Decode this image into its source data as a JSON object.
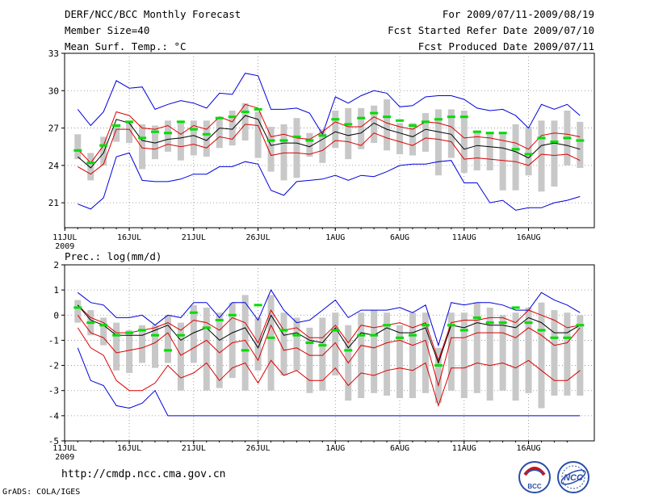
{
  "header": {
    "title": "DERF/NCC/BCC Monthly Forecast",
    "member_size": "Member Size=40",
    "variable": "Mean Surf. Temp.: °C",
    "period": "For 2009/07/11-2009/08/19",
    "fcst_started": "Fcst Started Refer Date 2009/07/10",
    "fcst_produced": "Fcst Produced Date 2009/07/11"
  },
  "footer": {
    "url": "http://cmdp.ncc.cma.gov.cn",
    "credit": "GrADS: COLA/IGES",
    "logo_left_text": "BCC",
    "logo_right_text": "NCC"
  },
  "colors": {
    "envelope": "#0000dd",
    "percentile": "#dd0000",
    "mean": "#000000",
    "box": "#c8c8c8",
    "observed": "#00dd00",
    "grid": "#888888"
  },
  "chart_data": [
    {
      "type": "line",
      "title": "Mean Surf. Temp.: °C",
      "ylim": [
        19,
        33
      ],
      "yticks": [
        21,
        24,
        27,
        30,
        33
      ],
      "x_start": "2009-07-11",
      "days": 40,
      "xtick_labels": [
        "11JUL",
        "16JUL",
        "21JUL",
        "26JUL",
        "1AUG",
        "6AUG",
        "11AUG",
        "16AUG"
      ],
      "xtick_days": [
        0,
        5,
        10,
        15,
        21,
        26,
        31,
        36
      ],
      "year_label": "2009",
      "series": [
        {
          "name": "max",
          "values": [
            28.5,
            27.2,
            28.3,
            30.8,
            30.2,
            30.3,
            28.5,
            28.9,
            29.2,
            29.0,
            28.6,
            29.8,
            29.7,
            31.4,
            31.2,
            28.5,
            28.5,
            28.6,
            28.2,
            26.5,
            29.5,
            29.0,
            29.6,
            30.0,
            29.8,
            28.7,
            28.8,
            29.5,
            29.6,
            29.6,
            29.3,
            28.6,
            28.4,
            28.5,
            28.0,
            27.0,
            28.9,
            28.5,
            28.9,
            28.0
          ]
        },
        {
          "name": "p90",
          "values": [
            25.3,
            24.2,
            25.6,
            28.3,
            28.0,
            27.0,
            26.9,
            27.2,
            26.5,
            27.2,
            26.9,
            27.9,
            27.5,
            28.9,
            28.6,
            26.3,
            26.5,
            26.2,
            26.1,
            26.7,
            27.5,
            27.1,
            27.1,
            27.9,
            27.4,
            27.1,
            26.9,
            27.5,
            27.4,
            27.1,
            26.2,
            26.3,
            26.2,
            26.0,
            25.8,
            25.3,
            26.4,
            26.6,
            26.5,
            26.3
          ]
        },
        {
          "name": "mean",
          "values": [
            24.7,
            23.8,
            25.0,
            27.7,
            27.4,
            26.0,
            25.8,
            26.1,
            26.2,
            26.4,
            26.0,
            27.0,
            26.9,
            28.0,
            27.7,
            25.6,
            25.8,
            25.8,
            25.5,
            26.1,
            26.7,
            26.4,
            26.6,
            27.4,
            26.9,
            26.6,
            26.3,
            26.9,
            26.7,
            26.5,
            25.3,
            25.6,
            25.5,
            25.4,
            25.1,
            24.6,
            25.6,
            25.8,
            25.6,
            25.3
          ]
        },
        {
          "name": "p10",
          "values": [
            23.9,
            23.3,
            24.1,
            26.9,
            26.9,
            25.4,
            25.3,
            25.7,
            25.5,
            25.7,
            25.4,
            26.3,
            26.1,
            27.3,
            27.2,
            24.8,
            25.0,
            25.0,
            24.9,
            25.2,
            26.0,
            25.9,
            25.6,
            26.6,
            26.2,
            25.9,
            25.6,
            26.2,
            26.1,
            25.9,
            24.5,
            24.6,
            24.5,
            24.4,
            24.3,
            24.0,
            24.9,
            24.8,
            24.9,
            24.4
          ]
        },
        {
          "name": "min",
          "values": [
            20.9,
            20.5,
            21.4,
            24.7,
            25.0,
            22.8,
            22.7,
            22.7,
            22.9,
            23.3,
            23.3,
            23.9,
            23.9,
            24.3,
            24.1,
            22.0,
            21.6,
            22.7,
            22.8,
            22.9,
            23.2,
            22.8,
            23.2,
            23.1,
            23.5,
            24.0,
            24.1,
            24.1,
            24.3,
            24.4,
            22.6,
            22.6,
            21.0,
            21.2,
            20.4,
            20.6,
            20.6,
            21.0,
            21.2,
            21.5
          ]
        },
        {
          "name": "box_top",
          "values": [
            26.5,
            25.0,
            26.3,
            27.2,
            27.6,
            27.3,
            27.2,
            27.6,
            27.6,
            27.6,
            27.6,
            27.9,
            28.4,
            29.0,
            28.3,
            27.1,
            27.3,
            27.8,
            26.6,
            26.9,
            28.4,
            28.6,
            28.6,
            28.8,
            29.3,
            27.4,
            27.4,
            28.2,
            28.5,
            28.5,
            28.4,
            26.8,
            26.7,
            26.7,
            27.3,
            27.1,
            27.6,
            27.6,
            28.4,
            27.5
          ]
        },
        {
          "name": "box_bottom",
          "values": [
            24.5,
            22.8,
            24.0,
            25.9,
            25.8,
            23.7,
            24.5,
            25.1,
            24.4,
            24.8,
            24.7,
            25.4,
            25.6,
            26.0,
            24.6,
            23.5,
            22.8,
            23.0,
            24.7,
            24.2,
            25.4,
            24.5,
            25.3,
            25.8,
            25.2,
            24.9,
            24.8,
            25.1,
            23.2,
            24.6,
            23.4,
            23.6,
            23.6,
            22.0,
            22.0,
            23.2,
            21.9,
            22.3,
            24.0,
            23.8
          ]
        },
        {
          "name": "observed",
          "values": [
            25.2,
            24.2,
            25.6,
            27.2,
            27.5,
            26.2,
            26.7,
            26.6,
            27.5,
            26.9,
            26.5,
            27.8,
            27.9,
            28.3,
            28.5,
            26.0,
            26.0,
            26.3,
            26.0,
            26.4,
            27.7,
            27.3,
            27.8,
            28.2,
            27.9,
            27.6,
            27.2,
            27.5,
            27.7,
            27.9,
            27.9,
            26.7,
            26.6,
            26.6,
            25.3,
            24.9,
            26.2,
            25.9,
            26.2,
            26.0
          ]
        }
      ]
    },
    {
      "type": "line",
      "title": "Prec.: log(mm/d)",
      "ylim": [
        -5,
        2
      ],
      "yticks": [
        -5,
        -4,
        -3,
        -2,
        -1,
        0,
        1,
        2
      ],
      "x_start": "2009-07-11",
      "days": 40,
      "xtick_labels": [
        "11JUL",
        "16JUL",
        "21JUL",
        "26JUL",
        "1AUG",
        "6AUG",
        "11AUG",
        "16AUG"
      ],
      "xtick_days": [
        0,
        5,
        10,
        15,
        21,
        26,
        31,
        36
      ],
      "year_label": "2009",
      "series": [
        {
          "name": "max",
          "values": [
            0.9,
            0.5,
            0.4,
            -0.1,
            -0.1,
            0.0,
            -0.4,
            0.0,
            -0.1,
            0.5,
            0.5,
            -0.1,
            0.5,
            0.5,
            -0.2,
            1.0,
            0.2,
            -0.3,
            -0.2,
            0.2,
            0.6,
            -0.1,
            0.2,
            0.2,
            0.2,
            0.3,
            0.1,
            0.4,
            -1.2,
            0.5,
            0.4,
            0.5,
            0.5,
            0.4,
            0.2,
            0.2,
            0.9,
            0.6,
            0.4,
            0.1
          ]
        },
        {
          "name": "p90",
          "values": [
            0.4,
            -0.1,
            -0.3,
            -0.7,
            -0.7,
            -0.6,
            -0.5,
            -0.3,
            -0.6,
            -0.2,
            -0.3,
            -0.6,
            -0.1,
            -0.3,
            -1.1,
            0.2,
            -0.6,
            -0.5,
            -0.9,
            -0.9,
            -0.4,
            -1.1,
            -0.4,
            -0.5,
            -0.4,
            -0.3,
            -0.5,
            -0.3,
            -1.8,
            -0.3,
            -0.2,
            -0.2,
            -0.1,
            -0.1,
            -0.3,
            0.2,
            0.0,
            -0.2,
            -0.5,
            -0.4
          ]
        },
        {
          "name": "mean",
          "values": [
            0.4,
            -0.2,
            -0.4,
            -0.8,
            -0.8,
            -0.8,
            -0.6,
            -0.4,
            -1.0,
            -0.7,
            -0.5,
            -1.0,
            -0.7,
            -0.5,
            -1.3,
            0.0,
            -0.8,
            -0.7,
            -1.0,
            -1.1,
            -0.5,
            -1.3,
            -0.7,
            -0.8,
            -0.5,
            -0.7,
            -0.7,
            -0.5,
            -1.9,
            -0.4,
            -0.5,
            -0.3,
            -0.4,
            -0.4,
            -0.5,
            -0.1,
            -0.3,
            -0.7,
            -0.7,
            -0.4
          ]
        },
        {
          "name": "p10",
          "values": [
            0.0,
            -0.7,
            -0.9,
            -1.5,
            -1.4,
            -1.3,
            -1.1,
            -0.7,
            -1.6,
            -1.3,
            -1.0,
            -1.5,
            -1.1,
            -1.0,
            -1.8,
            -0.4,
            -1.4,
            -1.3,
            -1.6,
            -1.6,
            -1.1,
            -1.9,
            -1.2,
            -1.3,
            -1.1,
            -1.0,
            -1.2,
            -1.0,
            -2.8,
            -0.9,
            -0.9,
            -0.7,
            -0.7,
            -0.7,
            -0.9,
            -0.5,
            -0.8,
            -1.2,
            -1.1,
            -0.5
          ]
        },
        {
          "name": "min",
          "values": [
            -1.3,
            -2.6,
            -2.8,
            -3.6,
            -3.7,
            -3.6,
            -3.3,
            -4.0,
            -4.0,
            -4.0,
            -4.0,
            -4.0,
            -4.0,
            -4.0,
            -4.0,
            -4.0,
            -4.0,
            -4.0,
            -4.0,
            -4.0,
            -4.0,
            -4.0,
            -4.0,
            -4.0,
            -4.0,
            -4.0,
            -4.0,
            -4.0,
            -4.0,
            -4.0,
            -4.0,
            -4.0,
            -4.0,
            -4.0,
            -4.0,
            -4.0,
            -4.0,
            -4.0,
            -4.0,
            -4.0
          ]
        },
        {
          "name": "min_shown",
          "values": [
            -1.3,
            -2.6,
            -2.8,
            -3.6,
            -3.7,
            -3.5,
            -3.0,
            -4.0,
            -4.0,
            -4.0,
            -4.0,
            -4.0,
            -4.0,
            -4.0,
            -4.0,
            -4.0,
            -4.0,
            -4.0,
            -4.0,
            -4.0,
            -4.0,
            -4.0,
            -4.0,
            -4.0,
            -4.0,
            -4.0,
            -4.0,
            -4.0,
            -4.0,
            -4.0,
            -4.0,
            -4.0,
            -4.0,
            -4.0,
            -4.0,
            -4.0,
            -4.0,
            -4.0,
            -4.0,
            -4.0
          ]
        },
        {
          "name": "p10_low",
          "values": [
            -0.5,
            -1.3,
            -1.6,
            -2.6,
            -3.0,
            -3.0,
            -2.7,
            -2.0,
            -2.5,
            -2.3,
            -1.9,
            -2.6,
            -2.1,
            -1.9,
            -2.7,
            -1.8,
            -2.4,
            -2.2,
            -2.6,
            -2.6,
            -2.1,
            -2.8,
            -2.3,
            -2.4,
            -2.2,
            -2.1,
            -2.2,
            -1.9,
            -3.6,
            -2.1,
            -2.1,
            -1.9,
            -2.0,
            -1.9,
            -2.1,
            -1.8,
            -2.2,
            -2.6,
            -2.6,
            -2.2
          ]
        },
        {
          "name": "box_top",
          "values": [
            0.6,
            0.2,
            -0.1,
            -0.3,
            -0.6,
            -0.4,
            -0.4,
            0.0,
            -0.3,
            0.4,
            0.3,
            0.1,
            0.5,
            0.8,
            -0.1,
            0.8,
            0.1,
            -0.1,
            -0.5,
            -0.1,
            0.1,
            -0.4,
            0.1,
            0.2,
            0.1,
            -0.4,
            0.1,
            0.1,
            -1.3,
            0.1,
            0.1,
            0.5,
            0.3,
            0.0,
            0.1,
            0.3,
            0.5,
            0.2,
            0.1,
            0.0
          ]
        },
        {
          "name": "box_bottom",
          "values": [
            -0.3,
            -0.8,
            -1.2,
            -2.2,
            -2.3,
            -1.9,
            -2.1,
            -1.9,
            -3.0,
            -1.9,
            -3.0,
            -2.9,
            -2.5,
            -3.0,
            -2.2,
            -3.0,
            -2.4,
            -2.2,
            -3.1,
            -3.0,
            -2.4,
            -3.4,
            -3.3,
            -3.1,
            -3.2,
            -3.3,
            -3.3,
            -3.1,
            -3.5,
            -3.0,
            -3.3,
            -3.1,
            -3.4,
            -3.0,
            -3.4,
            -3.1,
            -3.7,
            -3.2,
            -3.2,
            -3.2
          ]
        },
        {
          "name": "observed",
          "values": [
            0.3,
            -0.3,
            -0.4,
            -0.8,
            -0.7,
            -0.6,
            -0.8,
            -1.4,
            -0.8,
            0.1,
            -0.5,
            -0.2,
            0.0,
            -1.4,
            0.4,
            -0.9,
            -0.6,
            -0.8,
            -1.1,
            -1.2,
            -0.6,
            -1.4,
            -0.8,
            -0.8,
            -0.4,
            -0.9,
            -0.8,
            -0.4,
            -2.0,
            -0.4,
            -0.6,
            -0.1,
            -0.3,
            -0.3,
            0.3,
            -0.3,
            -0.6,
            -0.9,
            -0.9,
            -0.4
          ]
        }
      ]
    }
  ]
}
